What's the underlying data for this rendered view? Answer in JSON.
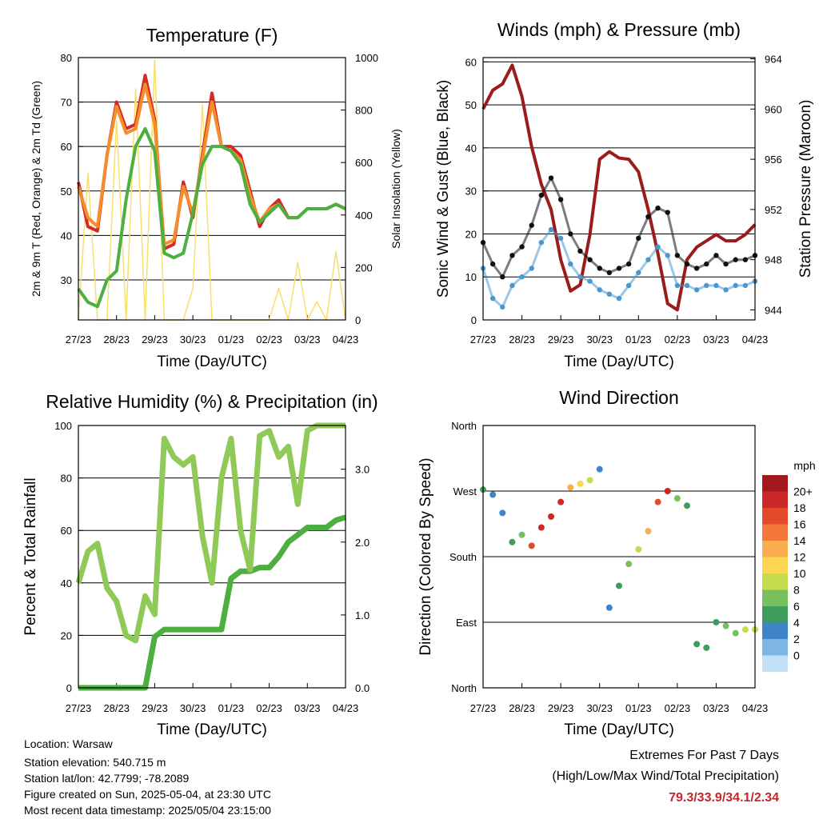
{
  "x_tick_labels": [
    "27/23",
    "28/23",
    "29/23",
    "30/23",
    "01/23",
    "02/23",
    "03/23",
    "04/23"
  ],
  "chart_data": [
    {
      "type": "line",
      "title": "Temperature (F)",
      "xlabel": "Time (Day/UTC)",
      "ylabel": "2m & 9m T (Red, Orange) & 2m Td (Green)",
      "y2label": "Solar Insolation (Yellow)",
      "ylim": [
        21,
        80
      ],
      "y2lim": [
        0,
        1000
      ],
      "yticks": [
        30,
        40,
        50,
        60,
        70,
        80
      ],
      "y2ticks": [
        0,
        200,
        400,
        600,
        800,
        1000
      ],
      "x": [
        0,
        0.25,
        0.5,
        0.75,
        1,
        1.25,
        1.5,
        1.75,
        2,
        2.25,
        2.5,
        2.75,
        3,
        3.25,
        3.5,
        3.75,
        4,
        4.25,
        4.5,
        4.75,
        5,
        5.25,
        5.5,
        5.75,
        6,
        6.25,
        6.5,
        6.75,
        7
      ],
      "series": [
        {
          "name": "2m T",
          "color": "#d42a25",
          "values": [
            52,
            42,
            41,
            58,
            70,
            64,
            65,
            76,
            66,
            37,
            38,
            52,
            44,
            58,
            72,
            60,
            60,
            58,
            50,
            42,
            46,
            48,
            44,
            44,
            46,
            46,
            46,
            47,
            46
          ]
        },
        {
          "name": "9m T",
          "color": "#f58d2a",
          "values": [
            51,
            44,
            42,
            58,
            69,
            63,
            64,
            74,
            65,
            38,
            39,
            51,
            45,
            57,
            70,
            60,
            59,
            57,
            49,
            43,
            46,
            47,
            44,
            44,
            46,
            46,
            46,
            47,
            46
          ]
        },
        {
          "name": "2m Td",
          "color": "#4caf3f",
          "values": [
            28,
            25,
            24,
            30,
            32,
            48,
            60,
            64,
            59,
            36,
            35,
            36,
            45,
            56,
            60,
            60,
            59,
            56,
            47,
            43,
            45,
            47,
            44,
            44,
            46,
            46,
            46,
            47,
            46
          ]
        },
        {
          "name": "Solar Insolation",
          "color": "#f7df6b",
          "axis": "y2",
          "values": [
            0,
            560,
            0,
            0,
            760,
            0,
            880,
            0,
            990,
            0,
            0,
            0,
            120,
            820,
            0,
            0,
            0,
            0,
            0,
            0,
            0,
            120,
            0,
            220,
            0,
            70,
            0,
            260,
            0
          ]
        }
      ]
    },
    {
      "type": "scatter",
      "title": "Winds (mph) & Pressure (mb)",
      "xlabel": "Time (Day/UTC)",
      "ylabel": "Sonic Wind & Gust (Blue, Black)",
      "y2label": "Station Pressure (Maroon)",
      "ylim": [
        0,
        61
      ],
      "y2lim": [
        943.2,
        964.1
      ],
      "yticks": [
        0,
        10,
        20,
        30,
        40,
        50,
        60
      ],
      "y2ticks": [
        944,
        948,
        952,
        956,
        960,
        964
      ],
      "x": [
        0,
        0.25,
        0.5,
        0.75,
        1,
        1.25,
        1.5,
        1.75,
        2,
        2.25,
        2.5,
        2.75,
        3,
        3.25,
        3.5,
        3.75,
        4,
        4.25,
        4.5,
        4.75,
        5,
        5.25,
        5.5,
        5.75,
        6,
        6.25,
        6.5,
        6.75,
        7
      ],
      "series": [
        {
          "name": "Sonic Wind",
          "color": "#4b97d0",
          "values": [
            12,
            5,
            3,
            8,
            10,
            12,
            18,
            21,
            19,
            13,
            10,
            9,
            7,
            6,
            5,
            8,
            11,
            14,
            17,
            15,
            8,
            8,
            7,
            8,
            8,
            7,
            8,
            8,
            9
          ]
        },
        {
          "name": "Gust",
          "color": "#111111",
          "values": [
            18,
            13,
            10,
            15,
            17,
            22,
            29,
            33,
            28,
            20,
            16,
            14,
            12,
            11,
            12,
            13,
            19,
            24,
            26,
            25,
            15,
            13,
            12,
            13,
            15,
            13,
            14,
            14,
            15
          ]
        },
        {
          "name": "Station Pressure",
          "color": "#9c1c1c",
          "axis": "y2",
          "values": [
            960,
            961.5,
            962,
            963.5,
            961,
            957,
            954,
            952,
            948,
            945.5,
            946,
            950,
            956,
            956.6,
            956.1,
            956,
            955,
            952,
            948.5,
            944.5,
            944,
            948,
            949,
            949.5,
            950,
            949.5,
            949.5,
            950,
            950.8
          ]
        }
      ]
    },
    {
      "type": "line",
      "title": "Relative Humidity (%) & Precipitation (in)",
      "xlabel": "Time (Day/UTC)",
      "ylabel": "Percent & Total Rainfall",
      "ylim": [
        0,
        100
      ],
      "y2lim": [
        0,
        3.6
      ],
      "yticks": [
        0,
        20,
        40,
        60,
        80,
        100
      ],
      "y2ticks": [
        "0.0",
        "1.0",
        "2.0",
        "3.0"
      ],
      "x": [
        0,
        0.25,
        0.5,
        0.75,
        1,
        1.25,
        1.5,
        1.75,
        2,
        2.25,
        2.5,
        2.75,
        3,
        3.25,
        3.5,
        3.75,
        4,
        4.25,
        4.5,
        4.75,
        5,
        5.25,
        5.5,
        5.75,
        6,
        6.25,
        6.5,
        6.75,
        7
      ],
      "series": [
        {
          "name": "Relative Humidity",
          "color": "#8fc957",
          "values": [
            40,
            52,
            55,
            38,
            33,
            20,
            18,
            35,
            28,
            95,
            88,
            85,
            88,
            58,
            40,
            80,
            95,
            60,
            45,
            96,
            98,
            88,
            92,
            70,
            98,
            100,
            100,
            100,
            100
          ]
        },
        {
          "name": "Precipitation",
          "color": "#4caf3f",
          "axis": "y2",
          "values": [
            0,
            0,
            0,
            0,
            0,
            0,
            0,
            0,
            0.7,
            0.8,
            0.8,
            0.8,
            0.8,
            0.8,
            0.8,
            0.8,
            1.5,
            1.6,
            1.6,
            1.65,
            1.65,
            1.8,
            2.0,
            2.1,
            2.2,
            2.2,
            2.2,
            2.3,
            2.34
          ]
        }
      ]
    },
    {
      "type": "scatter",
      "title": "Wind Direction",
      "xlabel": "Time (Day/UTC)",
      "ylabel": "Direction (Colored By Speed)",
      "yticks": [
        "North",
        "East",
        "South",
        "West",
        "North"
      ],
      "ylim": [
        0,
        360
      ],
      "x": [
        0,
        0.25,
        0.5,
        0.75,
        1,
        1.25,
        1.5,
        1.75,
        2,
        2.25,
        2.5,
        2.75,
        3,
        3.25,
        3.5,
        3.75,
        4,
        4.25,
        4.5,
        4.75,
        5,
        5.25,
        5.5,
        5.75,
        6,
        6.25,
        6.5,
        6.75,
        7
      ],
      "direction_deg": [
        272,
        265,
        240,
        200,
        210,
        195,
        220,
        235,
        255,
        275,
        280,
        285,
        300,
        110,
        140,
        170,
        190,
        215,
        255,
        270,
        260,
        250,
        60,
        55,
        90,
        85,
        75,
        80,
        80
      ],
      "speed_mph": [
        5,
        4,
        3,
        6,
        8,
        18,
        20,
        20,
        19,
        14,
        12,
        10,
        4,
        4,
        6,
        8,
        10,
        14,
        18,
        20,
        8,
        6,
        6,
        5,
        6,
        7,
        8,
        9,
        10
      ],
      "colorbar": {
        "title": "mph",
        "labels": [
          "20+",
          "18",
          "16",
          "14",
          "12",
          "10",
          "8",
          "6",
          "4",
          "2",
          "0"
        ],
        "colors": [
          "#a3171e",
          "#cc2727",
          "#e34a2a",
          "#f5773a",
          "#fbae4f",
          "#fdd64f",
          "#c6db4e",
          "#79bf5e",
          "#3e9d5e",
          "#3f84c6",
          "#7db5e3",
          "#bfe1f6"
        ]
      }
    }
  ],
  "info": {
    "location": "Location: Warsaw",
    "elevation": "Station elevation: 540.715 m",
    "latlon": "Station lat/lon: 42.7799; -78.2089",
    "created": "Figure created on Sun, 2025-05-04, at 23:30 UTC",
    "recent": "Most recent data timestamp: 2025/05/04 23:15:00"
  },
  "extremes": {
    "title": "Extremes For Past 7 Days",
    "subtitle": "(High/Low/Max Wind/Total Precipitation)",
    "values": "79.3/33.9/34.1/2.34"
  }
}
